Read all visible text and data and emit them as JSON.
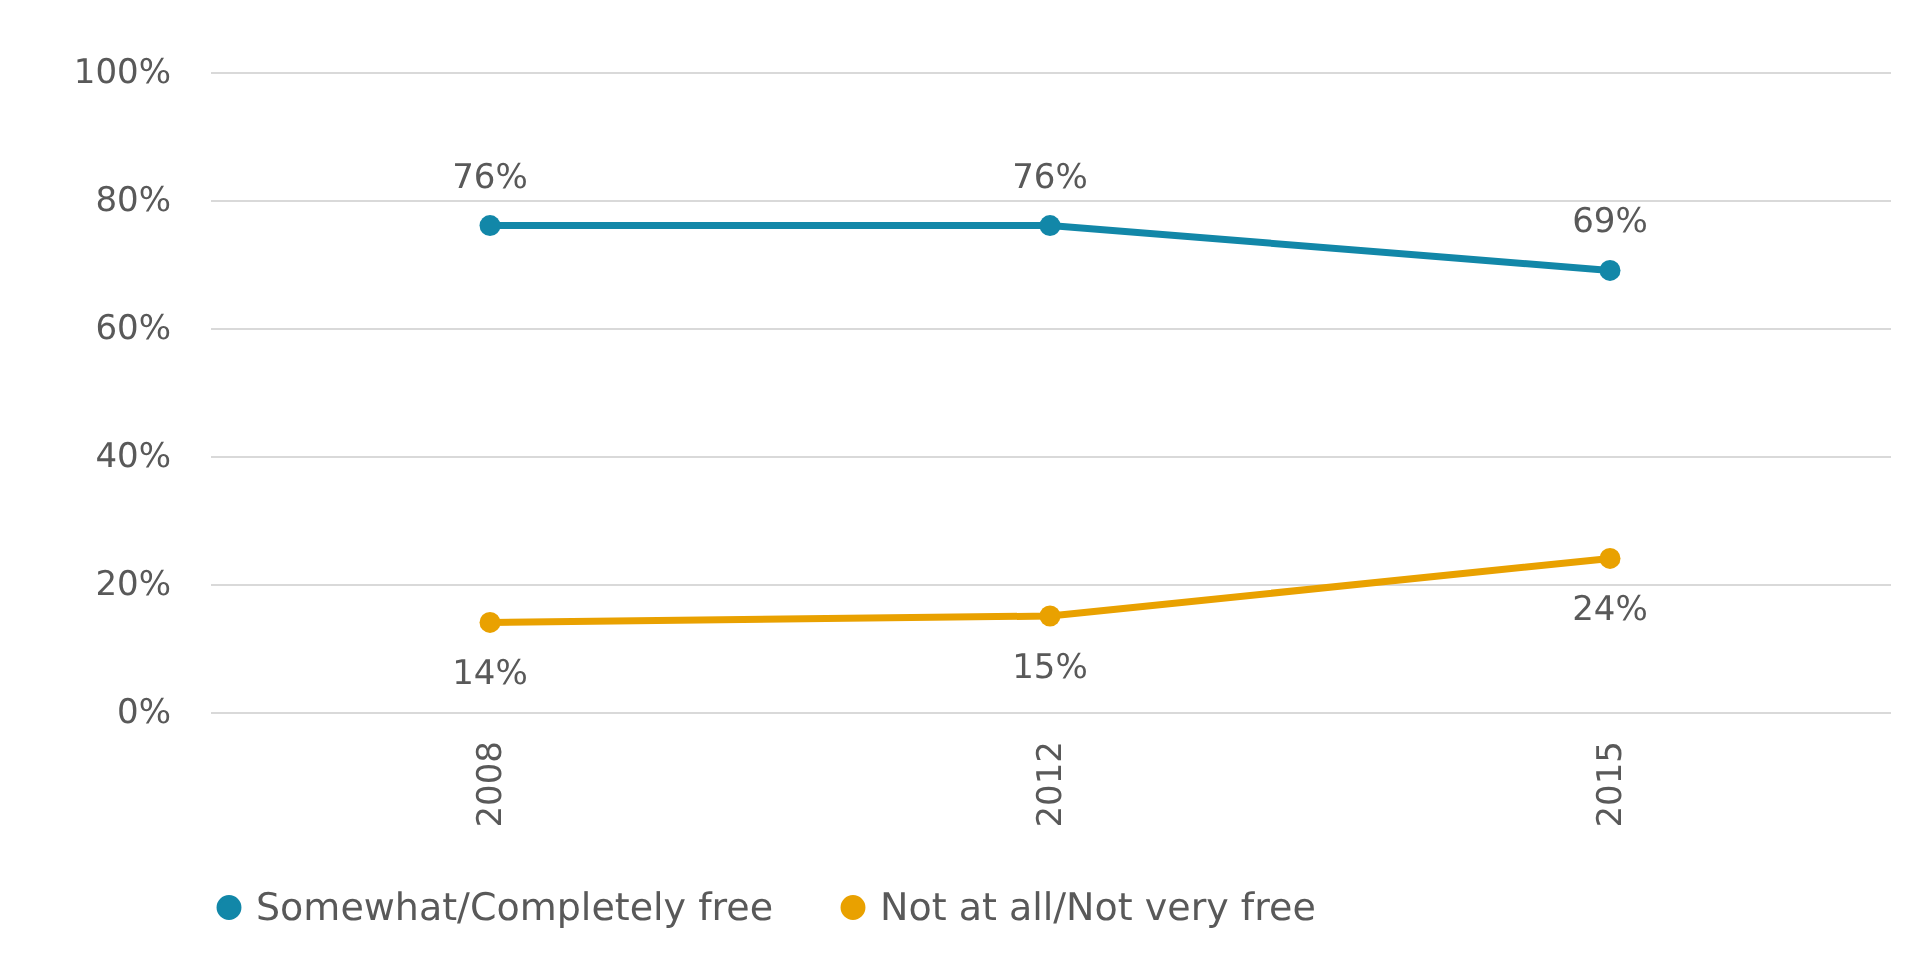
{
  "chart_data": {
    "type": "line",
    "categories": [
      "2008",
      "2012",
      "2015"
    ],
    "series": [
      {
        "name": "Somewhat/Completely free",
        "color": "#1287a8",
        "values": [
          76,
          76,
          69
        ],
        "value_labels": [
          "76%",
          "76%",
          "69%"
        ]
      },
      {
        "name": "Not at all/Not very free",
        "color": "#e9a100",
        "values": [
          14,
          15,
          24
        ],
        "value_labels": [
          "14%",
          "15%",
          "24%"
        ]
      }
    ],
    "ylim": [
      0,
      100
    ],
    "yticks": [
      {
        "value": 0,
        "label": "0%"
      },
      {
        "value": 20,
        "label": "20%"
      },
      {
        "value": 40,
        "label": "40%"
      },
      {
        "value": 60,
        "label": "60%"
      },
      {
        "value": 80,
        "label": "80%"
      },
      {
        "value": 100,
        "label": "100%"
      }
    ],
    "grid": "y",
    "legend": "bottom",
    "marker": "circle",
    "line_style": "solid"
  }
}
